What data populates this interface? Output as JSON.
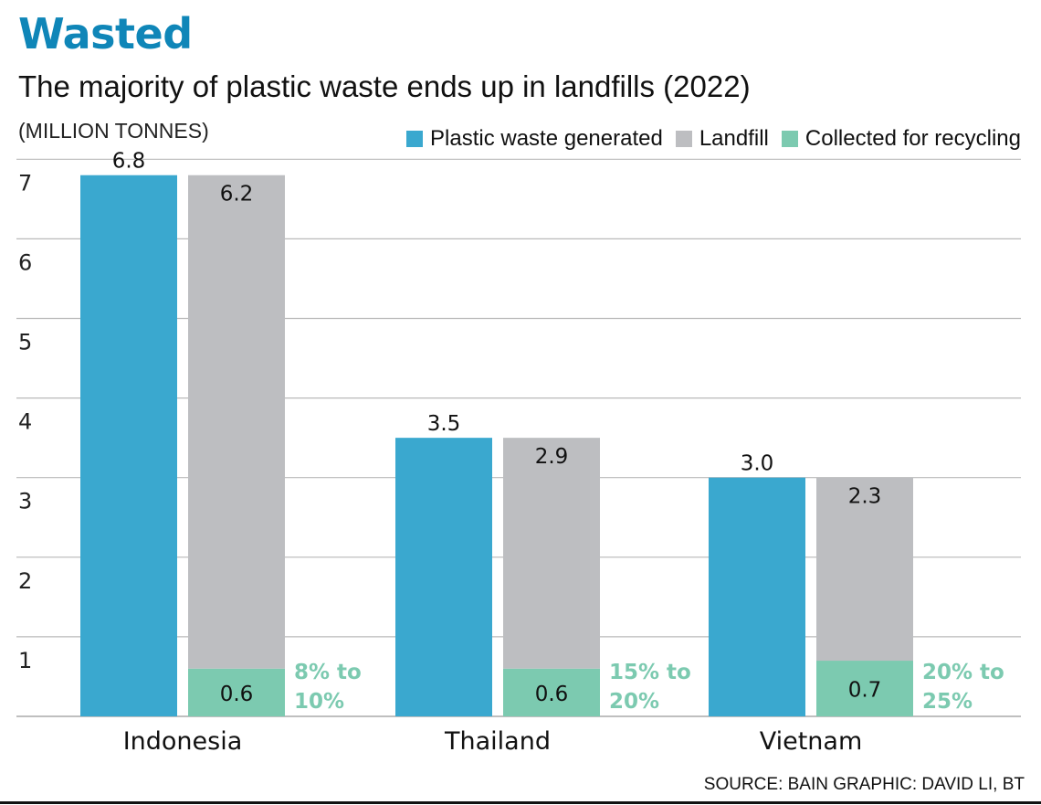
{
  "chart_data": {
    "type": "bar",
    "title": "Wasted",
    "subtitle": "The majority of plastic waste ends up in landfills (2022)",
    "ylabel": "(MILLION TONNES)",
    "xlabel": "",
    "ylim": [
      0,
      7
    ],
    "yticks": [
      1,
      2,
      3,
      4,
      5,
      6,
      7
    ],
    "grid": true,
    "legend_position": "top-right",
    "categories": [
      "Indonesia",
      "Thailand",
      "Vietnam"
    ],
    "series": [
      {
        "name": "Plastic waste generated",
        "color": "#3aa8cf",
        "values": [
          6.8,
          3.5,
          3.0
        ],
        "labels": [
          "6.8",
          "3.5",
          "3.0"
        ]
      },
      {
        "name": "Landfill",
        "color": "#bdbec1",
        "values": [
          6.2,
          2.9,
          2.3
        ],
        "labels": [
          "6.2",
          "2.9",
          "2.3"
        ],
        "stacked_on": "Collected for recycling"
      },
      {
        "name": "Collected for recycling",
        "color": "#7ccab0",
        "values": [
          0.6,
          0.6,
          0.7
        ],
        "labels": [
          "0.6",
          "0.6",
          "0.7"
        ]
      }
    ],
    "annotations": [
      {
        "category": "Indonesia",
        "line1": "8% to",
        "line2": "10%"
      },
      {
        "category": "Thailand",
        "line1": "15% to",
        "line2": "20%"
      },
      {
        "category": "Vietnam",
        "line1": "20% to",
        "line2": "25%"
      }
    ],
    "source": "SOURCE: BAIN   GRAPHIC: DAVID LI, BT"
  }
}
